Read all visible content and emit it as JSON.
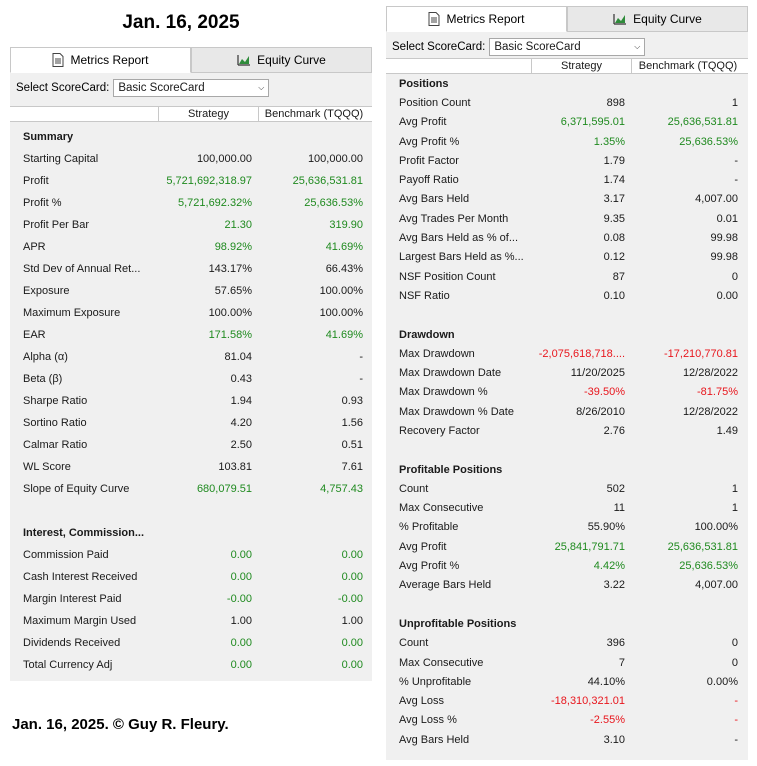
{
  "date_title": "Jan. 16, 2025",
  "footer_note": "Jan.  16, 2025. © Guy R. Fleury.",
  "colors": {
    "positive": "#1f8a1f",
    "negative": "#e8161d",
    "panel_bg": "#f0f0f0"
  },
  "tabs": [
    {
      "label": "Metrics Report",
      "icon": "document-icon"
    },
    {
      "label": "Equity Curve",
      "icon": "chart-icon"
    }
  ],
  "scorecard": {
    "label": "Select ScoreCard:",
    "value": "Basic ScoreCard"
  },
  "columns": {
    "strategy": "Strategy",
    "benchmark": "Benchmark (TQQQ)"
  },
  "left_sections": [
    {
      "title": "Summary",
      "rows": [
        {
          "label": "Starting Capital",
          "strategy": "100,000.00",
          "s_class": "neu",
          "benchmark": "100,000.00",
          "b_class": "neu"
        },
        {
          "label": "Profit",
          "strategy": "5,721,692,318.97",
          "s_class": "pos",
          "benchmark": "25,636,531.81",
          "b_class": "pos"
        },
        {
          "label": "Profit %",
          "strategy": "5,721,692.32%",
          "s_class": "pos",
          "benchmark": "25,636.53%",
          "b_class": "pos"
        },
        {
          "label": "Profit Per Bar",
          "strategy": "21.30",
          "s_class": "pos",
          "benchmark": "319.90",
          "b_class": "pos"
        },
        {
          "label": "APR",
          "strategy": "98.92%",
          "s_class": "pos",
          "benchmark": "41.69%",
          "b_class": "pos"
        },
        {
          "label": "Std Dev of Annual Ret...",
          "strategy": "143.17%",
          "s_class": "neu",
          "benchmark": "66.43%",
          "b_class": "neu"
        },
        {
          "label": "Exposure",
          "strategy": "57.65%",
          "s_class": "neu",
          "benchmark": "100.00%",
          "b_class": "neu"
        },
        {
          "label": "Maximum Exposure",
          "strategy": "100.00%",
          "s_class": "neu",
          "benchmark": "100.00%",
          "b_class": "neu"
        },
        {
          "label": "EAR",
          "strategy": "171.58%",
          "s_class": "pos",
          "benchmark": "41.69%",
          "b_class": "pos"
        },
        {
          "label": "Alpha (α)",
          "strategy": "81.04",
          "s_class": "neu",
          "benchmark": "-",
          "b_class": "neu"
        },
        {
          "label": "Beta (β)",
          "strategy": "0.43",
          "s_class": "neu",
          "benchmark": "-",
          "b_class": "neu"
        },
        {
          "label": "Sharpe Ratio",
          "strategy": "1.94",
          "s_class": "neu",
          "benchmark": "0.93",
          "b_class": "neu"
        },
        {
          "label": "Sortino Ratio",
          "strategy": "4.20",
          "s_class": "neu",
          "benchmark": "1.56",
          "b_class": "neu"
        },
        {
          "label": "Calmar Ratio",
          "strategy": "2.50",
          "s_class": "neu",
          "benchmark": "0.51",
          "b_class": "neu"
        },
        {
          "label": "WL Score",
          "strategy": "103.81",
          "s_class": "neu",
          "benchmark": "7.61",
          "b_class": "neu"
        },
        {
          "label": "Slope of Equity Curve",
          "strategy": "680,079.51",
          "s_class": "pos",
          "benchmark": "4,757.43",
          "b_class": "pos"
        }
      ]
    },
    {
      "title": "Interest, Commission...",
      "rows": [
        {
          "label": "Commission Paid",
          "strategy": "0.00",
          "s_class": "pos",
          "benchmark": "0.00",
          "b_class": "pos"
        },
        {
          "label": "Cash Interest Received",
          "strategy": "0.00",
          "s_class": "pos",
          "benchmark": "0.00",
          "b_class": "pos"
        },
        {
          "label": "Margin Interest Paid",
          "strategy": "-0.00",
          "s_class": "pos",
          "benchmark": "-0.00",
          "b_class": "pos"
        },
        {
          "label": "Maximum Margin Used",
          "strategy": "1.00",
          "s_class": "neu",
          "benchmark": "1.00",
          "b_class": "neu"
        },
        {
          "label": "Dividends Received",
          "strategy": "0.00",
          "s_class": "pos",
          "benchmark": "0.00",
          "b_class": "pos"
        },
        {
          "label": "Total Currency Adj",
          "strategy": "0.00",
          "s_class": "pos",
          "benchmark": "0.00",
          "b_class": "pos"
        }
      ]
    }
  ],
  "right_sections": [
    {
      "title": "Positions",
      "rows": [
        {
          "label": "Position Count",
          "strategy": "898",
          "s_class": "neu",
          "benchmark": "1",
          "b_class": "neu"
        },
        {
          "label": "Avg Profit",
          "strategy": "6,371,595.01",
          "s_class": "pos",
          "benchmark": "25,636,531.81",
          "b_class": "pos"
        },
        {
          "label": "Avg Profit %",
          "strategy": "1.35%",
          "s_class": "pos",
          "benchmark": "25,636.53%",
          "b_class": "pos"
        },
        {
          "label": "Profit Factor",
          "strategy": "1.79",
          "s_class": "neu",
          "benchmark": "-",
          "b_class": "neu"
        },
        {
          "label": "Payoff Ratio",
          "strategy": "1.74",
          "s_class": "neu",
          "benchmark": "-",
          "b_class": "neu"
        },
        {
          "label": "Avg Bars Held",
          "strategy": "3.17",
          "s_class": "neu",
          "benchmark": "4,007.00",
          "b_class": "neu"
        },
        {
          "label": "Avg Trades Per Month",
          "strategy": "9.35",
          "s_class": "neu",
          "benchmark": "0.01",
          "b_class": "neu"
        },
        {
          "label": "Avg Bars Held as % of...",
          "strategy": "0.08",
          "s_class": "neu",
          "benchmark": "99.98",
          "b_class": "neu"
        },
        {
          "label": "Largest Bars Held as %...",
          "strategy": "0.12",
          "s_class": "neu",
          "benchmark": "99.98",
          "b_class": "neu"
        },
        {
          "label": "NSF Position Count",
          "strategy": "87",
          "s_class": "neu",
          "benchmark": "0",
          "b_class": "neu"
        },
        {
          "label": "NSF Ratio",
          "strategy": "0.10",
          "s_class": "neu",
          "benchmark": "0.00",
          "b_class": "neu"
        }
      ]
    },
    {
      "title": "Drawdown",
      "rows": [
        {
          "label": "Max Drawdown",
          "strategy": "-2,075,618,718....",
          "s_class": "neg",
          "benchmark": "-17,210,770.81",
          "b_class": "neg"
        },
        {
          "label": "Max Drawdown Date",
          "strategy": "11/20/2025",
          "s_class": "neu",
          "benchmark": "12/28/2022",
          "b_class": "neu"
        },
        {
          "label": "Max Drawdown %",
          "strategy": "-39.50%",
          "s_class": "neg",
          "benchmark": "-81.75%",
          "b_class": "neg"
        },
        {
          "label": "Max Drawdown % Date",
          "strategy": "8/26/2010",
          "s_class": "neu",
          "benchmark": "12/28/2022",
          "b_class": "neu"
        },
        {
          "label": "Recovery Factor",
          "strategy": "2.76",
          "s_class": "neu",
          "benchmark": "1.49",
          "b_class": "neu"
        }
      ]
    },
    {
      "title": "Profitable Positions",
      "rows": [
        {
          "label": "Count",
          "strategy": "502",
          "s_class": "neu",
          "benchmark": "1",
          "b_class": "neu"
        },
        {
          "label": "Max Consecutive",
          "strategy": "11",
          "s_class": "neu",
          "benchmark": "1",
          "b_class": "neu"
        },
        {
          "label": "% Profitable",
          "strategy": "55.90%",
          "s_class": "neu",
          "benchmark": "100.00%",
          "b_class": "neu"
        },
        {
          "label": "Avg Profit",
          "strategy": "25,841,791.71",
          "s_class": "pos",
          "benchmark": "25,636,531.81",
          "b_class": "pos"
        },
        {
          "label": "Avg Profit %",
          "strategy": "4.42%",
          "s_class": "pos",
          "benchmark": "25,636.53%",
          "b_class": "pos"
        },
        {
          "label": "Average Bars Held",
          "strategy": "3.22",
          "s_class": "neu",
          "benchmark": "4,007.00",
          "b_class": "neu"
        }
      ]
    },
    {
      "title": "Unprofitable Positions",
      "rows": [
        {
          "label": "Count",
          "strategy": "396",
          "s_class": "neu",
          "benchmark": "0",
          "b_class": "neu"
        },
        {
          "label": "Max Consecutive",
          "strategy": "7",
          "s_class": "neu",
          "benchmark": "0",
          "b_class": "neu"
        },
        {
          "label": "% Unprofitable",
          "strategy": "44.10%",
          "s_class": "neu",
          "benchmark": "0.00%",
          "b_class": "neu"
        },
        {
          "label": "Avg Loss",
          "strategy": "-18,310,321.01",
          "s_class": "neg",
          "benchmark": "-",
          "b_class": "neg"
        },
        {
          "label": "Avg Loss %",
          "strategy": "-2.55%",
          "s_class": "neg",
          "benchmark": "-",
          "b_class": "neg"
        },
        {
          "label": "Avg Bars Held",
          "strategy": "3.10",
          "s_class": "neu",
          "benchmark": "-",
          "b_class": "neu"
        }
      ]
    }
  ]
}
